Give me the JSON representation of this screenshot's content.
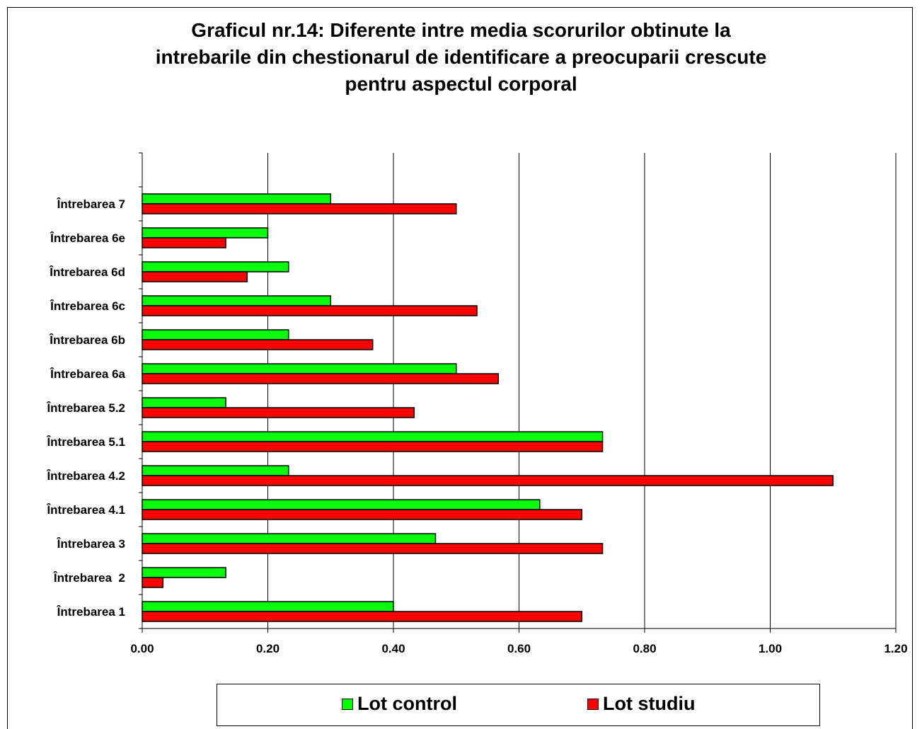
{
  "chart_data": {
    "type": "bar",
    "orientation": "horizontal",
    "title_lines": [
      "Graficul nr.14: Diferente intre media scorurilor obtinute la",
      "intrebarile din chestionarul de identificare a preocuparii crescute",
      "pentru aspectul corporal"
    ],
    "categories": [
      "Întrebarea 1",
      "Întrebarea  2",
      "Întrebarea 3",
      "Întrebarea 4.1",
      "Întrebarea 4.2",
      "Întrebarea 5.1",
      "Întrebarea 5.2",
      "Întrebarea 6a",
      "Întrebarea 6b",
      "Întrebarea 6c",
      "Întrebarea 6d",
      "Întrebarea 6e",
      "Întrebarea 7"
    ],
    "series": [
      {
        "name": "Lot control",
        "color": "#00ff00",
        "values": [
          0.4,
          0.133,
          0.467,
          0.633,
          0.233,
          0.733,
          0.133,
          0.5,
          0.233,
          0.3,
          0.233,
          0.2,
          0.3
        ]
      },
      {
        "name": "Lot studiu",
        "color": "#ff0000",
        "values": [
          0.7,
          0.033,
          0.733,
          0.7,
          1.1,
          0.733,
          0.433,
          0.567,
          0.367,
          0.533,
          0.167,
          0.133,
          0.5
        ]
      }
    ],
    "xlim": [
      0,
      1.2
    ],
    "xticks": [
      "0.00",
      "0.20",
      "0.40",
      "0.60",
      "0.80",
      "1.00",
      "1.20"
    ],
    "xtick_values": [
      0,
      0.2,
      0.4,
      0.6,
      0.8,
      1.0,
      1.2
    ],
    "grid": "vertical",
    "legend_position": "bottom"
  }
}
